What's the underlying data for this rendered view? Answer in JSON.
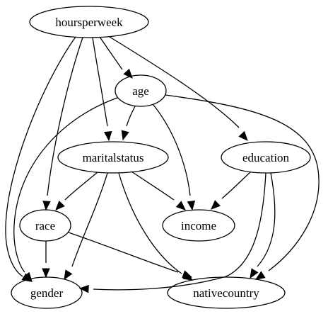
{
  "nodes": {
    "hoursperweek": "hoursperweek",
    "age": "age",
    "maritalstatus": "maritalstatus",
    "education": "education",
    "race": "race",
    "income": "income",
    "gender": "gender",
    "nativecountry": "nativecountry"
  },
  "edges": [
    [
      "hoursperweek",
      "age"
    ],
    [
      "hoursperweek",
      "maritalstatus"
    ],
    [
      "hoursperweek",
      "education"
    ],
    [
      "hoursperweek",
      "race"
    ],
    [
      "hoursperweek",
      "gender"
    ],
    [
      "age",
      "maritalstatus"
    ],
    [
      "age",
      "income"
    ],
    [
      "age",
      "gender"
    ],
    [
      "age",
      "nativecountry"
    ],
    [
      "maritalstatus",
      "race"
    ],
    [
      "maritalstatus",
      "income"
    ],
    [
      "maritalstatus",
      "gender"
    ],
    [
      "maritalstatus",
      "nativecountry"
    ],
    [
      "education",
      "income"
    ],
    [
      "education",
      "gender"
    ],
    [
      "education",
      "nativecountry"
    ],
    [
      "race",
      "gender"
    ],
    [
      "race",
      "nativecountry"
    ]
  ]
}
